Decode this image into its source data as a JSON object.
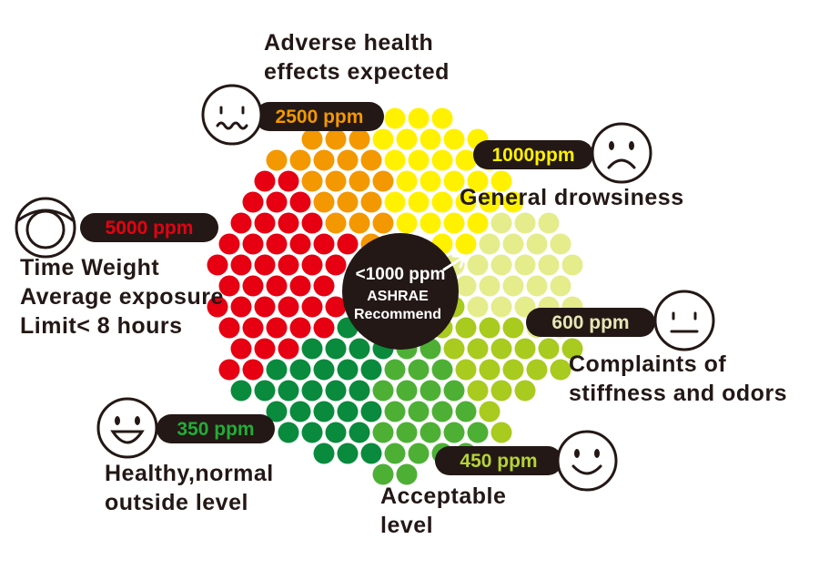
{
  "center": {
    "lines": [
      "<1000 ppm",
      "ASHRAE",
      "Recommend"
    ]
  },
  "levels": [
    {
      "ppm": "2500 ppm",
      "description": [
        "Adverse health",
        "effects expected"
      ]
    },
    {
      "ppm": "1000ppm",
      "description": [
        "General drowsiness"
      ]
    },
    {
      "ppm": "5000 ppm",
      "description": [
        "Time Weight",
        "Average exposure",
        "Limit< 8 hours"
      ]
    },
    {
      "ppm": "600 ppm",
      "description": [
        "Complaints of",
        "stiffness and odors"
      ]
    },
    {
      "ppm": "350 ppm",
      "description": [
        "Healthy,normal",
        "outside level"
      ]
    },
    {
      "ppm": "450 ppm",
      "description": [
        "Acceptable",
        "level"
      ]
    }
  ]
}
